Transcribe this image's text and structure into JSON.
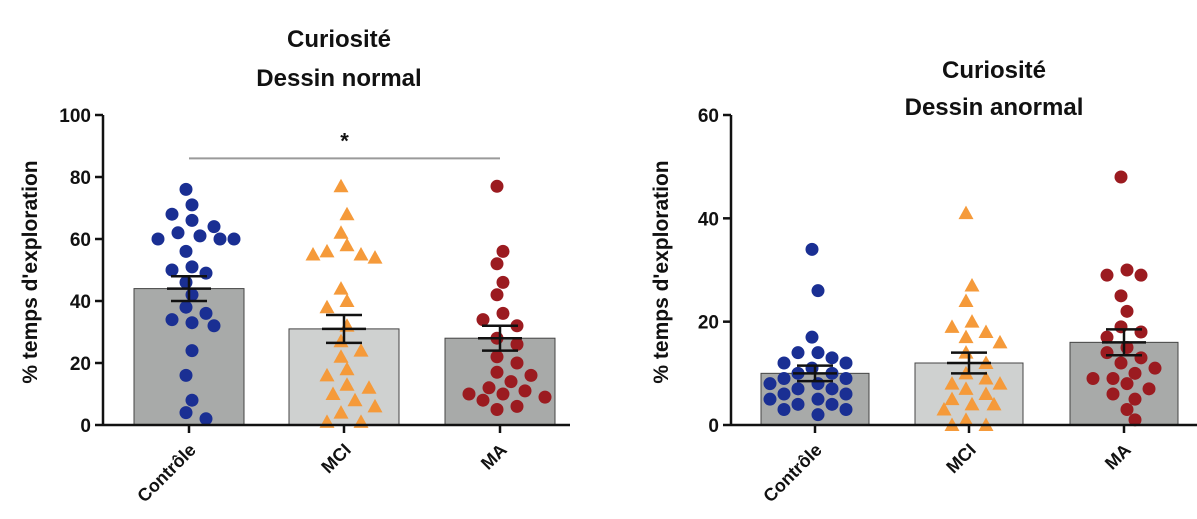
{
  "chart_data": [
    {
      "type": "bar",
      "title": [
        "Curiosité",
        "Dessin normal"
      ],
      "ylabel": "% temps d'exploration",
      "ylim": [
        0,
        100
      ],
      "yticks": [
        "0",
        "20",
        "40",
        "60",
        "80",
        "100"
      ],
      "categories": [
        "Contrôle",
        "MCI",
        "MA"
      ],
      "means": [
        44,
        31,
        28
      ],
      "sem": [
        4,
        4.5,
        4
      ],
      "bar_colors": [
        "#a8aaa9",
        "#cfd1d0",
        "#a8aaa9"
      ],
      "point_colors": [
        "#1a2f93",
        "#f59a3a",
        "#9b1b20"
      ],
      "point_shapes": [
        "circle",
        "triangle",
        "circle"
      ],
      "points": [
        [
          76,
          71,
          68,
          66,
          64,
          62,
          61,
          60,
          60,
          60,
          56,
          51,
          50,
          49,
          46,
          42,
          38,
          36,
          34,
          33,
          32,
          24,
          16,
          8,
          4,
          2
        ],
        [
          77,
          68,
          62,
          58,
          56,
          55,
          55,
          54,
          44,
          40,
          38,
          32,
          27,
          24,
          22,
          18,
          16,
          13,
          12,
          10,
          8,
          6,
          4,
          1,
          1
        ],
        [
          77,
          56,
          52,
          46,
          42,
          36,
          34,
          32,
          28,
          26,
          22,
          20,
          17,
          16,
          14,
          12,
          11,
          10,
          10,
          9,
          8,
          6,
          5
        ]
      ],
      "significance": {
        "label": "*",
        "from": "Contrôle",
        "to": "MA",
        "y": 86
      }
    },
    {
      "type": "bar",
      "title": [
        "Curiosité",
        "Dessin anormal"
      ],
      "ylabel": "% temps d'exploration",
      "ylim": [
        0,
        60
      ],
      "yticks": [
        "0",
        "20",
        "40",
        "60"
      ],
      "categories": [
        "Contrôle",
        "MCI",
        "MA"
      ],
      "means": [
        10,
        12,
        16
      ],
      "sem": [
        1.5,
        2,
        2.5
      ],
      "bar_colors": [
        "#a8aaa9",
        "#cfd1d0",
        "#a8aaa9"
      ],
      "point_colors": [
        "#1a2f93",
        "#f59a3a",
        "#9b1b20"
      ],
      "point_shapes": [
        "circle",
        "triangle",
        "circle"
      ],
      "points": [
        [
          34,
          26,
          17,
          14,
          14,
          13,
          12,
          12,
          11,
          10,
          10,
          9,
          9,
          8,
          8,
          7,
          7,
          6,
          6,
          5,
          5,
          4,
          4,
          3,
          3,
          2
        ],
        [
          41,
          27,
          24,
          20,
          19,
          18,
          17,
          16,
          14,
          12,
          10,
          9,
          8,
          8,
          7,
          6,
          5,
          4,
          4,
          3,
          1,
          0,
          0
        ],
        [
          48,
          30,
          29,
          29,
          25,
          22,
          19,
          18,
          17,
          15,
          14,
          13,
          12,
          11,
          10,
          9,
          9,
          8,
          7,
          6,
          5,
          3,
          1
        ]
      ]
    }
  ]
}
